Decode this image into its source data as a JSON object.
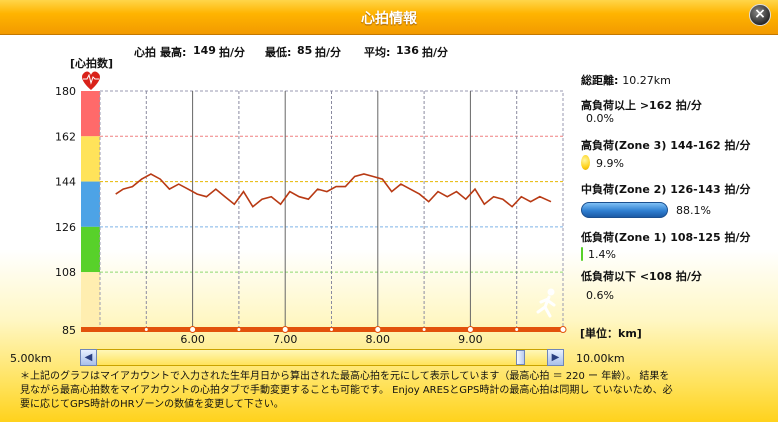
{
  "window": {
    "title": "心拍情報",
    "close_label": "×"
  },
  "summary": {
    "hr_label": "心拍",
    "max_label": "最高:",
    "max_value": "149",
    "min_label": "最低:",
    "min_value": "85",
    "avg_label": "平均:",
    "avg_value": "136",
    "unit": "拍/分"
  },
  "axis": {
    "y_unit": "[心拍数]",
    "x_unit": "[単位：km]"
  },
  "chart_data": {
    "type": "line",
    "title": "",
    "ylabel": "心拍数",
    "xlabel": "単位：km",
    "xlim": [
      5.0,
      10.0
    ],
    "ylim": [
      85,
      180
    ],
    "y_ticks": [
      180,
      162,
      144,
      126,
      108,
      85
    ],
    "x_ticks": [
      6.0,
      7.0,
      8.0,
      9.0
    ],
    "x_tick_labels": [
      "6.00",
      "7.00",
      "8.00",
      "9.00"
    ],
    "zone_bands": [
      {
        "from": 162,
        "to": 180,
        "color": "#ff6a6a"
      },
      {
        "from": 144,
        "to": 162,
        "color": "#ffe35a"
      },
      {
        "from": 126,
        "to": 144,
        "color": "#4da3e6"
      },
      {
        "from": 108,
        "to": 126,
        "color": "#58d12a"
      },
      {
        "from": 85,
        "to": 108,
        "color": "#ffeeb0"
      }
    ],
    "line_color": "#b83a14",
    "x": [
      5.17,
      5.25,
      5.35,
      5.45,
      5.55,
      5.65,
      5.75,
      5.85,
      5.95,
      6.05,
      6.15,
      6.25,
      6.35,
      6.45,
      6.55,
      6.65,
      6.75,
      6.85,
      6.95,
      7.05,
      7.15,
      7.25,
      7.35,
      7.45,
      7.55,
      7.65,
      7.75,
      7.85,
      7.95,
      8.05,
      8.15,
      8.25,
      8.35,
      8.45,
      8.55,
      8.65,
      8.75,
      8.85,
      8.95,
      9.05,
      9.15,
      9.25,
      9.35,
      9.45,
      9.55,
      9.65,
      9.75,
      9.87
    ],
    "y": [
      139,
      141,
      142,
      145,
      147,
      145,
      141,
      143,
      141,
      139,
      138,
      141,
      138,
      135,
      140,
      134,
      137,
      138,
      135,
      140,
      138,
      137,
      141,
      140,
      142,
      142,
      146,
      147,
      146,
      145,
      140,
      143,
      141,
      139,
      136,
      140,
      138,
      140,
      137,
      141,
      135,
      138,
      137,
      134,
      138,
      136,
      138,
      136
    ]
  },
  "zones": {
    "total_distance_label": "総距離:",
    "total_distance_value": "10.27km",
    "items": [
      {
        "label": "高負荷以上 >162 拍/分",
        "percent": "0.0%",
        "value": 0.0,
        "color": "#ff6a6a"
      },
      {
        "label": "高負荷(Zone 3)  144-162 拍/分",
        "percent": "9.9%",
        "value": 9.9,
        "color": "#ffd21c"
      },
      {
        "label": "中負荷(Zone 2) 126-143 拍/分",
        "percent": "88.1%",
        "value": 88.1,
        "color": "#2f7fd1"
      },
      {
        "label": "低負荷(Zone 1) 108-125 拍/分",
        "percent": "1.4%",
        "value": 1.4,
        "color": "#58d12a"
      },
      {
        "label": "低負荷以下 <108 拍/分",
        "percent": "0.6%",
        "value": 0.6,
        "color": "#ffeeb0"
      }
    ]
  },
  "range": {
    "start": "5.00km",
    "end": "10.00km",
    "left_arrow": "◀",
    "right_arrow": "▶"
  },
  "note": {
    "line1": "＊上記のグラフはマイアカウントで入力された生年月日から算出された最高心拍を元にして表示しています（最高心拍 ＝ 220 ー 年齢）。 結果を",
    "line2": "見ながら最高心拍数をマイアカウントの心拍タブで手動変更することも可能です。 Enjoy ARESとGPS時計の最高心拍は同期し ていないため、必",
    "line3": "要に応じてGPS時計のHRゾーンの数値を変更して下さい。"
  }
}
